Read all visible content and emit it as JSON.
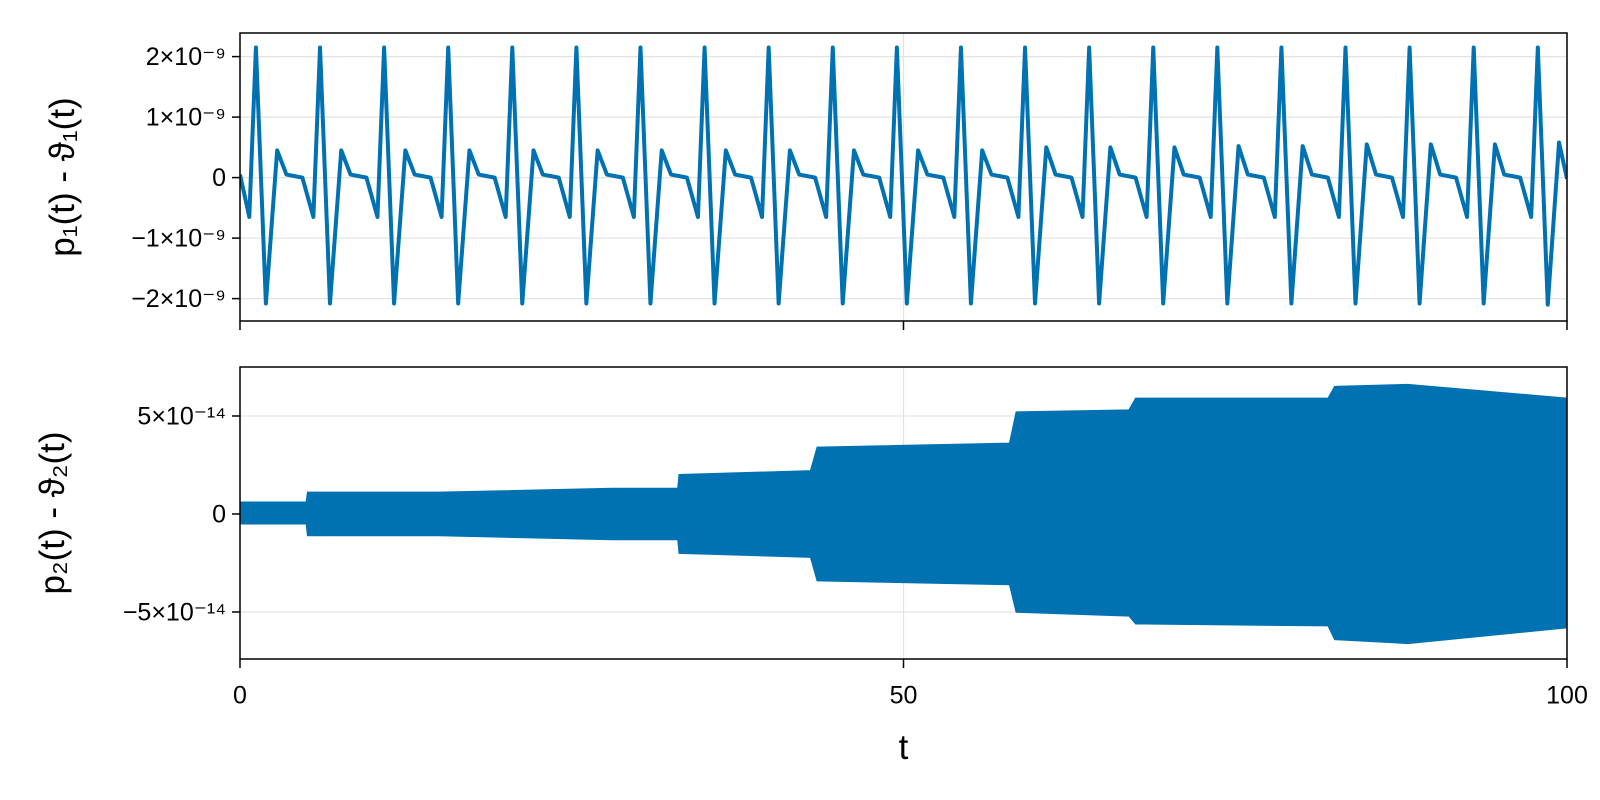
{
  "chart_data": [
    {
      "type": "line",
      "ylabel": "p₁(t) - ϑ₁(t)",
      "color": "#0072b2",
      "grid": true,
      "show_xtick_labels": false,
      "xlim": [
        0,
        100
      ],
      "xticks": [
        0,
        50,
        100
      ],
      "ylim": [
        -2.37e-09,
        2.39e-09
      ],
      "yticks": [
        {
          "value": -2e-09,
          "label": "−2×10⁻⁹"
        },
        {
          "value": -1e-09,
          "label": "−1×10⁻⁹"
        },
        0,
        {
          "value": 1e-09,
          "label": "1×10⁻⁹"
        },
        {
          "value": 2e-09,
          "label": "2×10⁻⁹"
        }
      ],
      "x": [
        0,
        0.7,
        1.2,
        1.95,
        2.8,
        3.5,
        4.7,
        5.53,
        6.03,
        6.78,
        7.63,
        8.33,
        9.53,
        10.36,
        10.86,
        11.61,
        12.46,
        13.16,
        14.36,
        15.19,
        15.69,
        16.44,
        17.29,
        17.99,
        19.19,
        20.02,
        20.52,
        21.27,
        22.12,
        22.82,
        24.02,
        24.85,
        25.35,
        26.1,
        26.95,
        27.65,
        28.85,
        29.68,
        30.18,
        30.93,
        31.78,
        32.48,
        33.68,
        34.51,
        35.01,
        35.76,
        36.61,
        37.31,
        38.51,
        39.34,
        39.84,
        40.59,
        41.44,
        42.14,
        43.34,
        44.17,
        44.67,
        45.42,
        46.27,
        46.97,
        48.17,
        49,
        49.5,
        50.25,
        51.1,
        51.8,
        53,
        53.83,
        54.33,
        55.08,
        55.93,
        56.63,
        57.83,
        58.66,
        59.16,
        59.91,
        60.76,
        61.46,
        62.66,
        63.49,
        63.99,
        64.74,
        65.59,
        66.29,
        67.49,
        68.32,
        68.82,
        69.57,
        70.42,
        71.12,
        72.32,
        73.15,
        73.65,
        74.4,
        75.25,
        75.95,
        77.15,
        77.98,
        78.48,
        79.23,
        80.08,
        80.78,
        81.98,
        82.81,
        83.31,
        84.06,
        84.91,
        85.61,
        86.81,
        87.64,
        88.14,
        88.89,
        89.74,
        90.44,
        91.64,
        92.47,
        92.97,
        93.72,
        94.57,
        95.27,
        96.47,
        97.3,
        97.8,
        98.55,
        99.4,
        100
      ],
      "values": [
        5e-11,
        -6.5e-10,
        2.15e-09,
        -2.08e-09,
        4.5e-10,
        5e-11,
        0,
        -6.5e-10,
        2.15e-09,
        -2.08e-09,
        4.5e-10,
        5e-11,
        0,
        -6.5e-10,
        2.15e-09,
        -2.08e-09,
        4.5e-10,
        5e-11,
        0,
        -6.5e-10,
        2.15e-09,
        -2.08e-09,
        4.5e-10,
        5e-11,
        0,
        -6.5e-10,
        2.15e-09,
        -2.08e-09,
        4.5e-10,
        5e-11,
        0,
        -6.5e-10,
        2.15e-09,
        -2.08e-09,
        4.5e-10,
        5e-11,
        0,
        -6.5e-10,
        2.15e-09,
        -2.08e-09,
        4.5e-10,
        5e-11,
        0,
        -6.5e-10,
        2.15e-09,
        -2.08e-09,
        4.5e-10,
        5e-11,
        0,
        -6.5e-10,
        2.15e-09,
        -2.08e-09,
        4.5e-10,
        5e-11,
        0,
        -6.5e-10,
        2.15e-09,
        -2.08e-09,
        4.5e-10,
        5e-11,
        0,
        -6.5e-10,
        2.15e-09,
        -2.08e-09,
        4.5e-10,
        5e-11,
        0,
        -6.5e-10,
        2.15e-09,
        -2.08e-09,
        4.5e-10,
        5e-11,
        0,
        -6.5e-10,
        2.15e-09,
        -2.08e-09,
        5e-10,
        5e-11,
        0,
        -6.5e-10,
        2.15e-09,
        -2.08e-09,
        5e-10,
        5e-11,
        0,
        -6.5e-10,
        2.15e-09,
        -2.08e-09,
        5e-10,
        5e-11,
        0,
        -6.5e-10,
        2.15e-09,
        -2.08e-09,
        5.2e-10,
        5e-11,
        0,
        -6.5e-10,
        2.15e-09,
        -2.08e-09,
        5.2e-10,
        5e-11,
        0,
        -6.5e-10,
        2.15e-09,
        -2.08e-09,
        5.5e-10,
        5e-11,
        0,
        -6.5e-10,
        2.15e-09,
        -2.08e-09,
        5.5e-10,
        5e-11,
        0,
        -6.5e-10,
        2.15e-09,
        -2.08e-09,
        5.5e-10,
        5e-11,
        0,
        -6.5e-10,
        2.15e-09,
        -2.1e-09,
        5.8e-10,
        -2e-11
      ]
    },
    {
      "type": "band",
      "ylabel": "p₂(t) - ϑ₂(t)",
      "xlabel": "t",
      "color": "#0072b2",
      "grid": true,
      "xlim": [
        0,
        100
      ],
      "xticks": [
        0,
        50,
        100
      ],
      "ylim": [
        -7.4e-14,
        7.5e-14
      ],
      "yticks": [
        {
          "value": -5e-14,
          "label": "−5×10⁻¹⁴"
        },
        0,
        {
          "value": 5e-14,
          "label": "5×10⁻¹⁴"
        }
      ],
      "x": [
        0,
        5,
        5.1,
        15,
        28,
        33,
        33.1,
        43,
        43.5,
        58,
        58.5,
        67,
        67.5,
        82,
        82.5,
        88,
        100
      ],
      "upper": [
        6e-15,
        6e-15,
        1.1e-14,
        1.1e-14,
        1.3e-14,
        1.3e-14,
        2e-14,
        2.2e-14,
        3.4e-14,
        3.6e-14,
        5.2e-14,
        5.3e-14,
        5.9e-14,
        5.9e-14,
        6.5e-14,
        6.6e-14,
        5.9e-14
      ],
      "lower": [
        -5e-15,
        -5e-15,
        -1.1e-14,
        -1.1e-14,
        -1.3e-14,
        -1.3e-14,
        -2e-14,
        -2.2e-14,
        -3.4e-14,
        -3.6e-14,
        -5e-14,
        -5.2e-14,
        -5.6e-14,
        -5.7e-14,
        -6.4e-14,
        -6.6e-14,
        -5.8e-14
      ]
    }
  ]
}
